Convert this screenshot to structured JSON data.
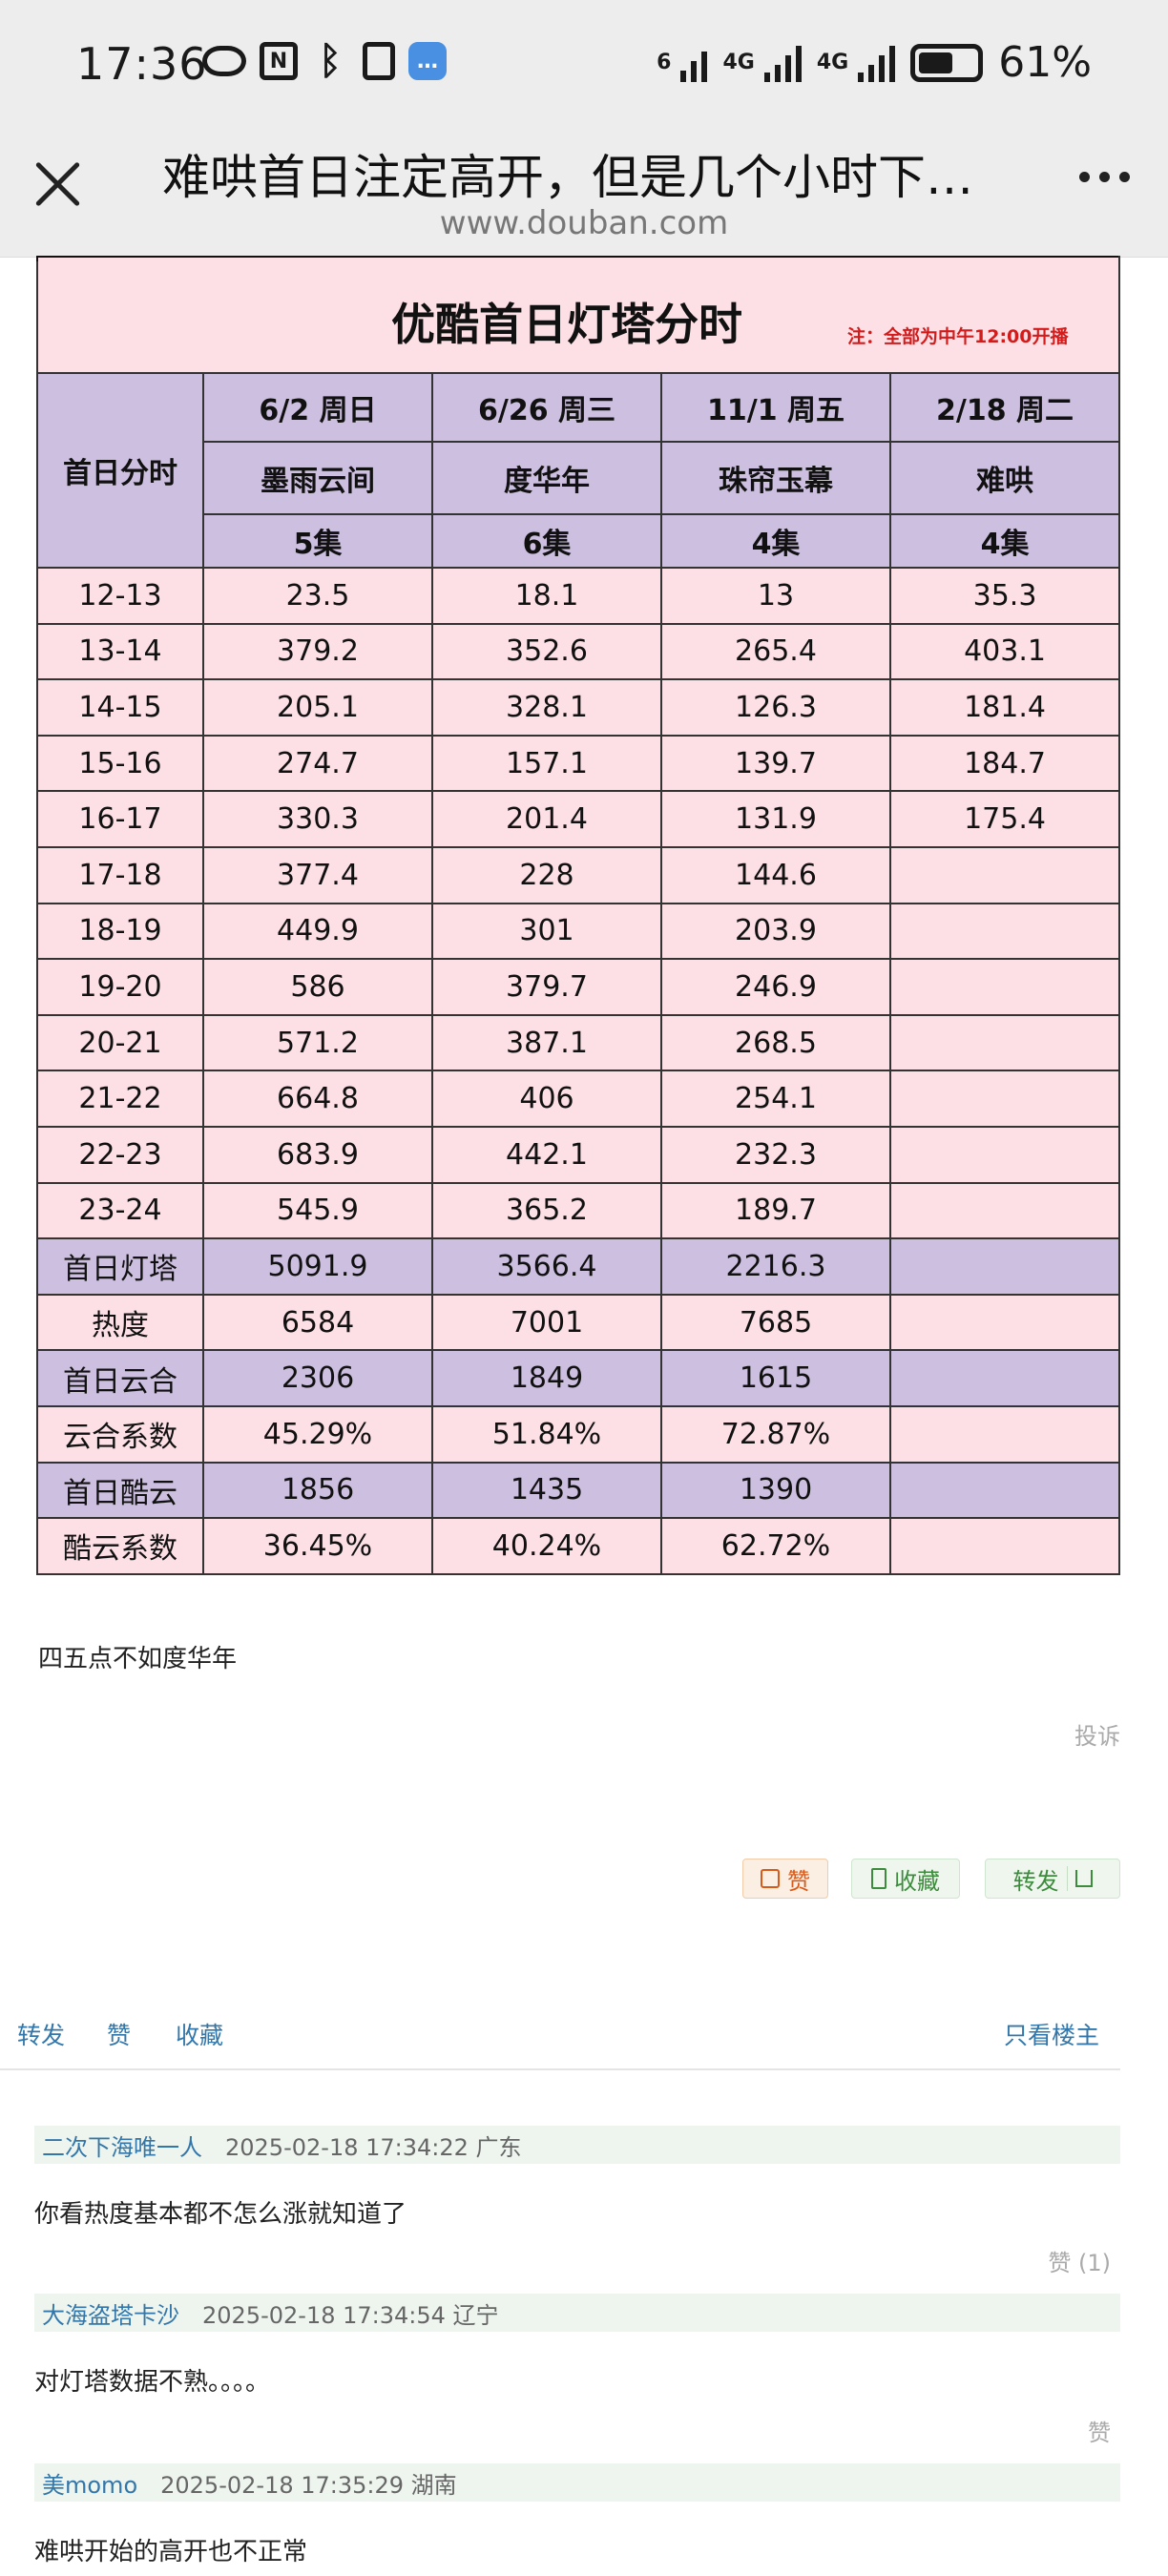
{
  "status_bar": {
    "time": "17:36",
    "battery": "61%",
    "battery_level": 0.61,
    "network_1": "4G",
    "network_2": "4G",
    "wifi_tag": "6",
    "icons": [
      "eye-icon",
      "nfc-icon",
      "bluetooth-icon",
      "vibrate-icon",
      "chat-app-icon",
      "wifi-icon",
      "signal-icon",
      "battery-icon"
    ]
  },
  "header": {
    "title": "难哄首日注定高开，但是几个小时下…",
    "domain": "www.douban.com"
  },
  "table": {
    "title": "优酷首日灯塔分时",
    "note": "注：全部为中午12:00开播",
    "row_header_label": "首日分时",
    "columns": [
      {
        "date": "6/2  周日",
        "name": "墨雨云间",
        "episodes": "5集"
      },
      {
        "date": "6/26  周三",
        "name": "度华年",
        "episodes": "6集"
      },
      {
        "date": "11/1  周五",
        "name": "珠帘玉幕",
        "episodes": "4集"
      },
      {
        "date": "2/18  周二",
        "name": "难哄",
        "episodes": "4集"
      }
    ],
    "rows": [
      {
        "label": "12-13",
        "values": [
          "23.5",
          "18.1",
          "13",
          "35.3"
        ],
        "style": "pink"
      },
      {
        "label": "13-14",
        "values": [
          "379.2",
          "352.6",
          "265.4",
          "403.1"
        ],
        "style": "pink"
      },
      {
        "label": "14-15",
        "values": [
          "205.1",
          "328.1",
          "126.3",
          "181.4"
        ],
        "style": "pink"
      },
      {
        "label": "15-16",
        "values": [
          "274.7",
          "157.1",
          "139.7",
          "184.7"
        ],
        "style": "pink"
      },
      {
        "label": "16-17",
        "values": [
          "330.3",
          "201.4",
          "131.9",
          "175.4"
        ],
        "style": "pink"
      },
      {
        "label": "17-18",
        "values": [
          "377.4",
          "228",
          "144.6",
          ""
        ],
        "style": "pink"
      },
      {
        "label": "18-19",
        "values": [
          "449.9",
          "301",
          "203.9",
          ""
        ],
        "style": "pink"
      },
      {
        "label": "19-20",
        "values": [
          "586",
          "379.7",
          "246.9",
          ""
        ],
        "style": "pink"
      },
      {
        "label": "20-21",
        "values": [
          "571.2",
          "387.1",
          "268.5",
          ""
        ],
        "style": "pink"
      },
      {
        "label": "21-22",
        "values": [
          "664.8",
          "406",
          "254.1",
          ""
        ],
        "style": "pink"
      },
      {
        "label": "22-23",
        "values": [
          "683.9",
          "442.1",
          "232.3",
          ""
        ],
        "style": "pink"
      },
      {
        "label": "23-24",
        "values": [
          "545.9",
          "365.2",
          "189.7",
          ""
        ],
        "style": "pink"
      },
      {
        "label": "首日灯塔",
        "values": [
          "5091.9",
          "3566.4",
          "2216.3",
          ""
        ],
        "style": "purple"
      },
      {
        "label": "热度",
        "values": [
          "6584",
          "7001",
          "7685",
          ""
        ],
        "style": "pink"
      },
      {
        "label": "首日云合",
        "values": [
          "2306",
          "1849",
          "1615",
          ""
        ],
        "style": "purple"
      },
      {
        "label": "云合系数",
        "values": [
          "45.29%",
          "51.84%",
          "72.87%",
          ""
        ],
        "style": "pink"
      },
      {
        "label": "首日酷云",
        "values": [
          "1856",
          "1435",
          "1390",
          ""
        ],
        "style": "purple"
      },
      {
        "label": "酷云系数",
        "values": [
          "36.45%",
          "40.24%",
          "62.72%",
          ""
        ],
        "style": "pink"
      }
    ],
    "colors": {
      "pink": "#fde0e6",
      "purple": "#cdbfe0",
      "note_red": "#d21c1c"
    }
  },
  "post": {
    "text": "四五点不如度华年",
    "report": "投诉",
    "like": "赞",
    "favorite": "收藏",
    "share": "转发"
  },
  "bar": {
    "share": "转发",
    "like": "赞",
    "favorite": "收藏",
    "only_op": "只看楼主"
  },
  "comments": [
    {
      "user": "二次下海唯一人",
      "meta": "2025-02-18 17:34:22 广东",
      "text": "你看热度基本都不怎么涨就知道了",
      "like": "赞 (1)"
    },
    {
      "user": "大海盗塔卡沙",
      "meta": "2025-02-18 17:34:54 辽宁",
      "text": "对灯塔数据不熟。。。。",
      "like": "赞"
    },
    {
      "user": "美momo",
      "meta": "2025-02-18 17:35:29 湖南",
      "text": "难哄开始的高开也不正常",
      "like": ""
    }
  ]
}
